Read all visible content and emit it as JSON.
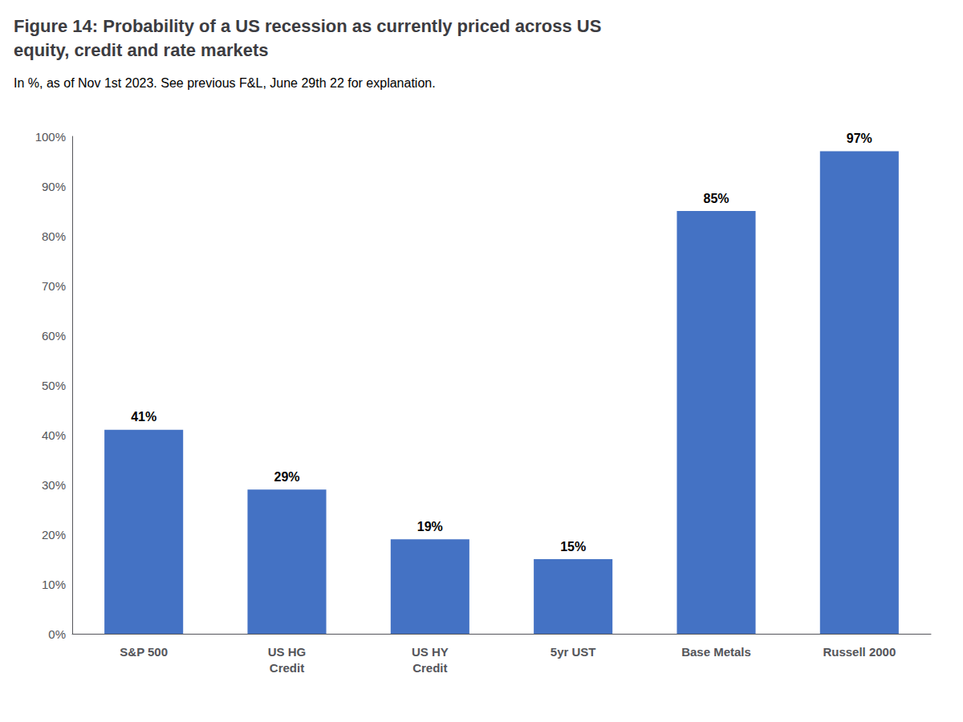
{
  "chart_data": {
    "type": "bar",
    "title": "Figure 14: Probability of a US recession as currently priced across US\nequity, credit and rate markets",
    "subtitle": "In %, as of Nov 1st 2023. See previous F&L, June 29th 22 for explanation.",
    "categories": [
      "S&P 500",
      "US HG\nCredit",
      "US HY\nCredit",
      "5yr UST",
      "Base Metals",
      "Russell 2000"
    ],
    "values": [
      41,
      29,
      19,
      15,
      85,
      97
    ],
    "value_labels": [
      "41%",
      "29%",
      "19%",
      "15%",
      "85%",
      "97%"
    ],
    "data_labels": true,
    "color": "#4472C4",
    "ylim": [
      0,
      100
    ],
    "yticks": [
      {
        "value": 0,
        "label": "0%"
      },
      {
        "value": 10,
        "label": "10%"
      },
      {
        "value": 20,
        "label": "20%"
      },
      {
        "value": 30,
        "label": "30%"
      },
      {
        "value": 40,
        "label": "40%"
      },
      {
        "value": 50,
        "label": "50%"
      },
      {
        "value": 60,
        "label": "60%"
      },
      {
        "value": 70,
        "label": "70%"
      },
      {
        "value": 80,
        "label": "80%"
      },
      {
        "value": 90,
        "label": "90%"
      },
      {
        "value": 100,
        "label": "100%"
      }
    ],
    "grid": false
  }
}
